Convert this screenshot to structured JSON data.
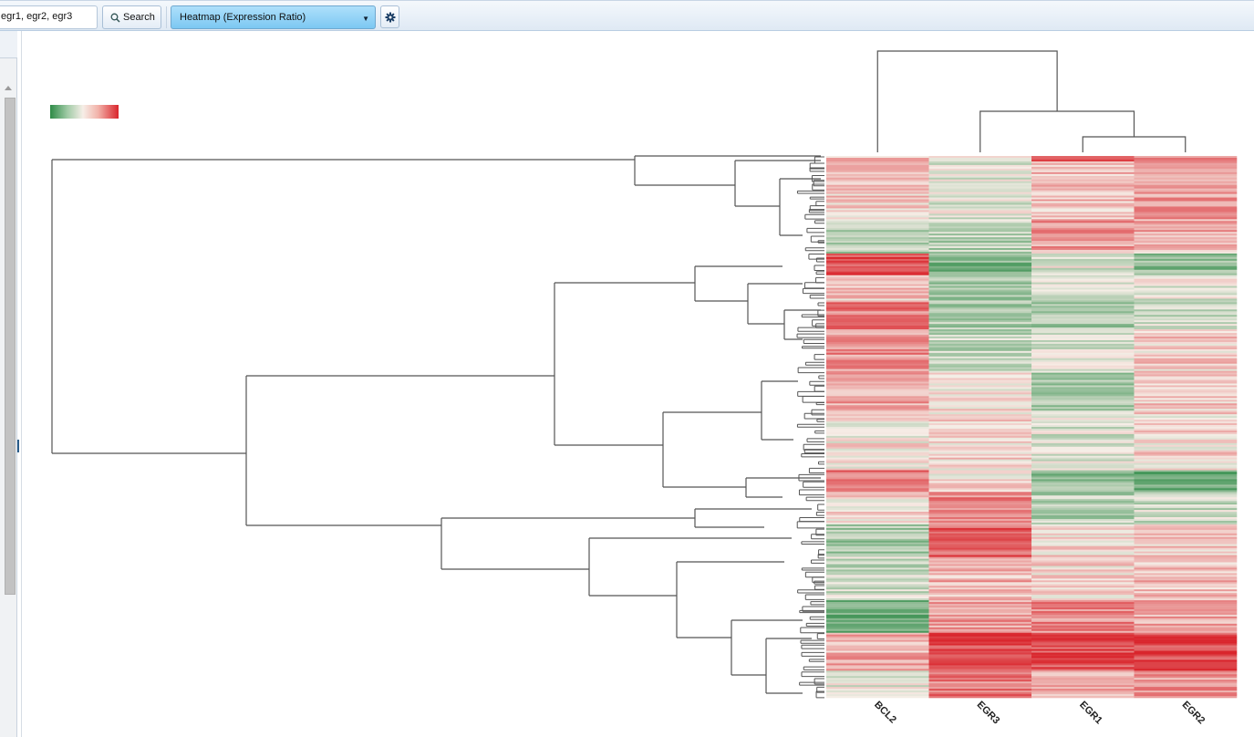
{
  "toolbar": {
    "search_value": "egr1, egr2, egr3",
    "search_button_label": "Search",
    "view_select_value": "Heatmap (Expression Ratio)",
    "search_icon": "magnifier-icon",
    "settings_icon": "gear-icon"
  },
  "heatmap": {
    "columns": [
      "BCL2",
      "EGR3",
      "EGR1",
      "EGR2"
    ],
    "legend_colors": {
      "low": "#2e8b47",
      "mid": "#f6eee7",
      "high": "#d9252c"
    }
  },
  "colors": {
    "accent_select": "#7cc8f2",
    "dendrogram_line": "#555555"
  }
}
